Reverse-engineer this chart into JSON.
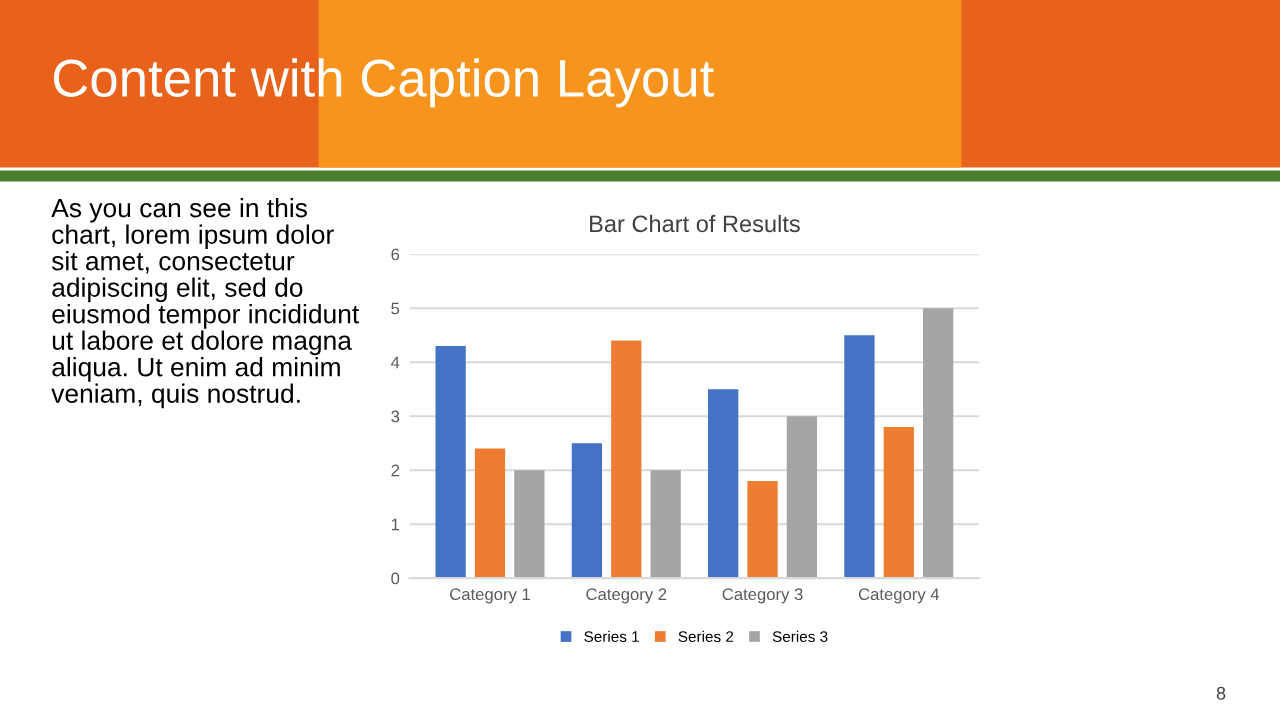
{
  "chart_data": {
    "type": "bar",
    "title": "Bar Chart of Results",
    "categories": [
      "Category 1",
      "Category 2",
      "Category 3",
      "Category 4"
    ],
    "series": [
      {
        "name": "Series 1",
        "color": "#4472c4",
        "values": [
          4.3,
          2.5,
          3.5,
          4.5
        ]
      },
      {
        "name": "Series 2",
        "color": "#ed7d31",
        "values": [
          2.4,
          4.4,
          1.8,
          2.8
        ]
      },
      {
        "name": "Series 3",
        "color": "#a5a5a5",
        "values": [
          2,
          2,
          3,
          5
        ]
      }
    ],
    "ylim": [
      0,
      6
    ],
    "yticks": [
      0,
      1,
      2,
      3,
      4,
      5,
      6
    ],
    "grid": "y",
    "legend": "bottom",
    "annotations": [
      "Content with Caption Layout",
      "As you can see in this\nchart, lorem ipsum dolor\nsit amet, consectetur\nadipiscing elit, sed do\neiusmod tempor incididunt\nut labore et dolore magna\naliqua. Ut enim ad minim\nveniam, quis nostrud.",
      "8"
    ]
  }
}
